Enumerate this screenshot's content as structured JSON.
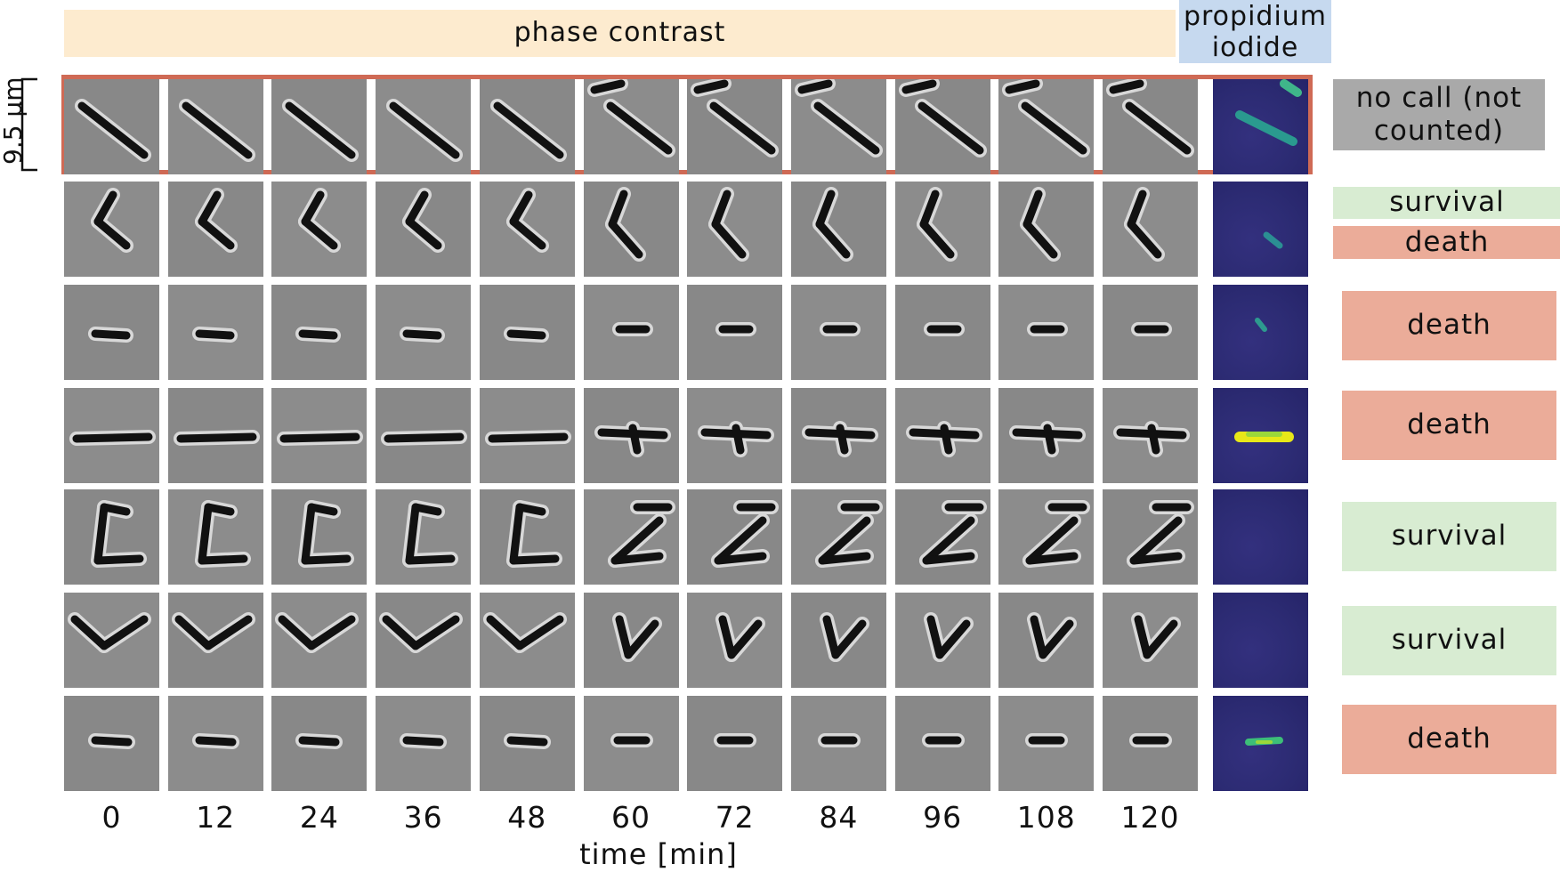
{
  "headers": {
    "phase": "phase contrast",
    "pi": "propidium iodide"
  },
  "scale_bar": "9.5 µm",
  "time_axis": {
    "label": "time [min]",
    "ticks": [
      "0",
      "12",
      "24",
      "36",
      "48",
      "60",
      "72",
      "84",
      "96",
      "108",
      "120"
    ]
  },
  "calls": {
    "row0": "no call (not counted)",
    "row1a": "survival",
    "row1b": "death",
    "row2": "death",
    "row3": "death",
    "row4": "survival",
    "row5": "survival",
    "row6": "death"
  },
  "colors": {
    "phase_header": "#fdebcf",
    "pi_header": "#c6d9ef",
    "frame": "#cf6a55",
    "no_call": "#a9a9a9",
    "survival": "#d8ecd2",
    "death": "#ebac99"
  }
}
